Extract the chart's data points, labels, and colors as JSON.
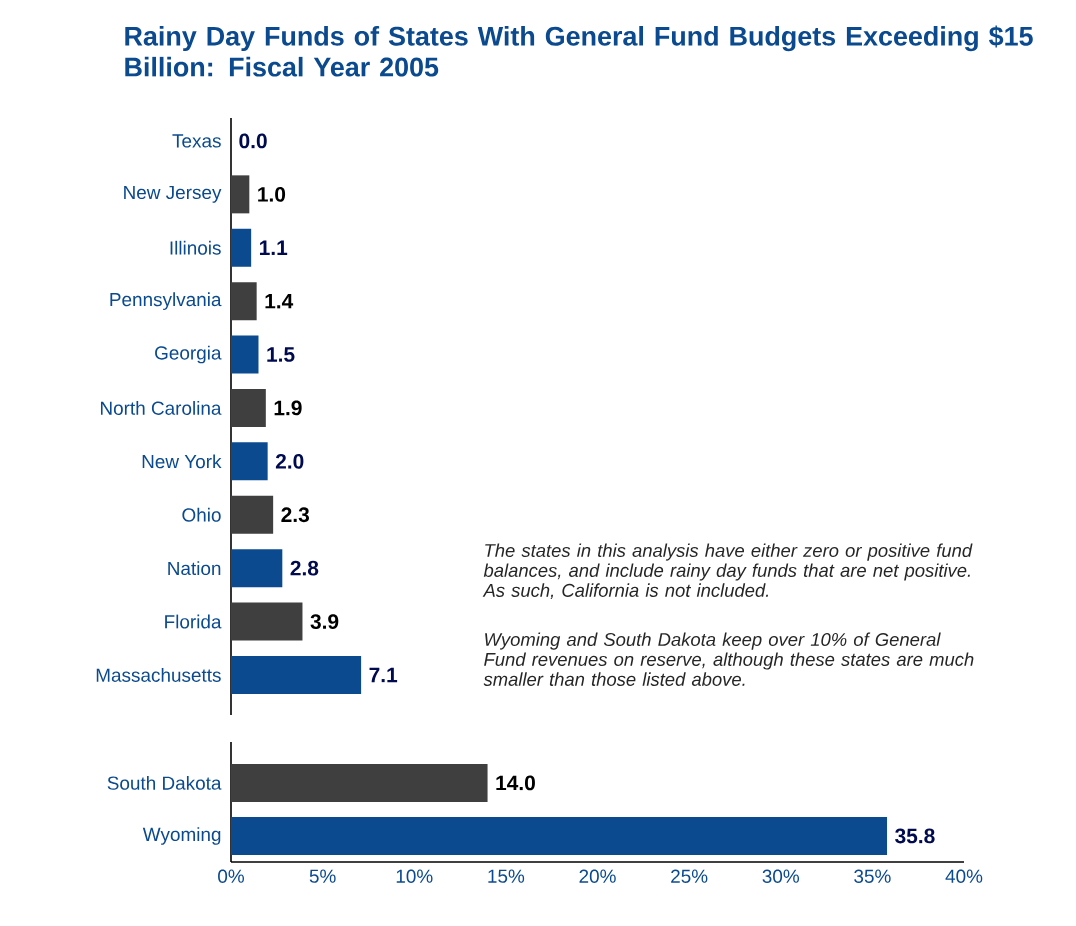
{
  "chart_data": [
    {
      "type": "bar",
      "orientation": "horizontal",
      "title": "Rainy Day Funds of States With General Fund Budgets Exceeding $15 Billion: Fiscal Year 2005",
      "categories": [
        "Texas",
        "New Jersey",
        "Illinois",
        "Pennsylvania",
        "Georgia",
        "North Carolina",
        "New York",
        "Ohio",
        "Nation",
        "Florida",
        "Massachusetts"
      ],
      "values": [
        0.0,
        1.0,
        1.1,
        1.4,
        1.5,
        1.9,
        2.0,
        2.3,
        2.8,
        3.9,
        7.1
      ],
      "colors": [
        "#0b4a8e",
        "#3f3f3f",
        "#0b4a8e",
        "#3f3f3f",
        "#0b4a8e",
        "#3f3f3f",
        "#0b4a8e",
        "#3f3f3f",
        "#0b4a8e",
        "#3f3f3f",
        "#0b4a8e"
      ],
      "xlim": [
        0,
        40
      ],
      "tick_labels": "y",
      "value_labels": [
        "0.0",
        "1.0",
        "1.1",
        "1.4",
        "1.5",
        "1.9",
        "2.0",
        "2.3",
        "2.8",
        "3.9",
        "7.1"
      ],
      "annotations": [
        "The states in this analysis have either zero or positive fund balances, and include rainy day funds that are net positive. As such, California is not included.",
        "Wyoming and South Dakota keep over 10% of General Fund revenues on reserve, although these states are much smaller than those listed above."
      ]
    },
    {
      "type": "bar",
      "orientation": "horizontal",
      "categories": [
        "South Dakota",
        "Wyoming"
      ],
      "values": [
        14.0,
        35.8
      ],
      "colors": [
        "#3f3f3f",
        "#0b4a8e"
      ],
      "xlim": [
        0,
        40
      ],
      "xticks": [
        {
          "value": 0,
          "label": "0%"
        },
        {
          "value": 5,
          "label": "5%"
        },
        {
          "value": 10,
          "label": "10%"
        },
        {
          "value": 15,
          "label": "15%"
        },
        {
          "value": 20,
          "label": "20%"
        },
        {
          "value": 25,
          "label": "25%"
        },
        {
          "value": 30,
          "label": "30%"
        },
        {
          "value": 35,
          "label": "35%"
        },
        {
          "value": 40,
          "label": "40%"
        }
      ],
      "value_labels": [
        "14.0",
        "35.8"
      ]
    }
  ]
}
